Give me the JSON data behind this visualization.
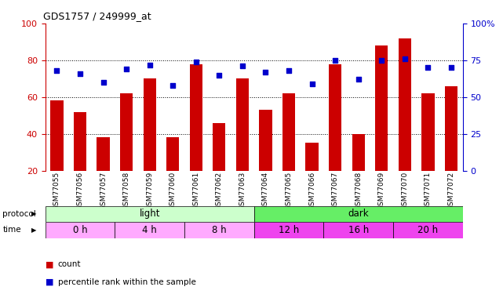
{
  "title": "GDS1757 / 249999_at",
  "samples": [
    "GSM77055",
    "GSM77056",
    "GSM77057",
    "GSM77058",
    "GSM77059",
    "GSM77060",
    "GSM77061",
    "GSM77062",
    "GSM77063",
    "GSM77064",
    "GSM77065",
    "GSM77066",
    "GSM77067",
    "GSM77068",
    "GSM77069",
    "GSM77070",
    "GSM77071",
    "GSM77072"
  ],
  "count_values": [
    58,
    52,
    38,
    62,
    70,
    38,
    78,
    46,
    70,
    53,
    62,
    35,
    78,
    40,
    88,
    92,
    62,
    66
  ],
  "percentile_values": [
    68,
    66,
    60,
    69,
    72,
    58,
    74,
    65,
    71,
    67,
    68,
    59,
    75,
    62,
    75,
    76,
    70,
    70
  ],
  "bar_color": "#cc0000",
  "dot_color": "#0000cc",
  "ylim_left": [
    20,
    100
  ],
  "ylim_right": [
    0,
    100
  ],
  "yticks_left": [
    20,
    40,
    60,
    80,
    100
  ],
  "ytick_labels_right": [
    "0",
    "25",
    "50",
    "75",
    "100%"
  ],
  "grid_lines": [
    40,
    60,
    80
  ],
  "protocol_light_label": "light",
  "protocol_dark_label": "dark",
  "protocol_light_color": "#ccffcc",
  "protocol_dark_color": "#66ee66",
  "time_color_light": "#ffaaff",
  "time_color_dark": "#ee44ee",
  "xlabel_protocol": "protocol",
  "xlabel_time": "time",
  "legend_count_label": "count",
  "legend_percentile_label": "percentile rank within the sample",
  "bg_color": "#ffffff",
  "axis_left_color": "#cc0000",
  "axis_right_color": "#0000cc",
  "chart_bg_color": "#ffffff"
}
